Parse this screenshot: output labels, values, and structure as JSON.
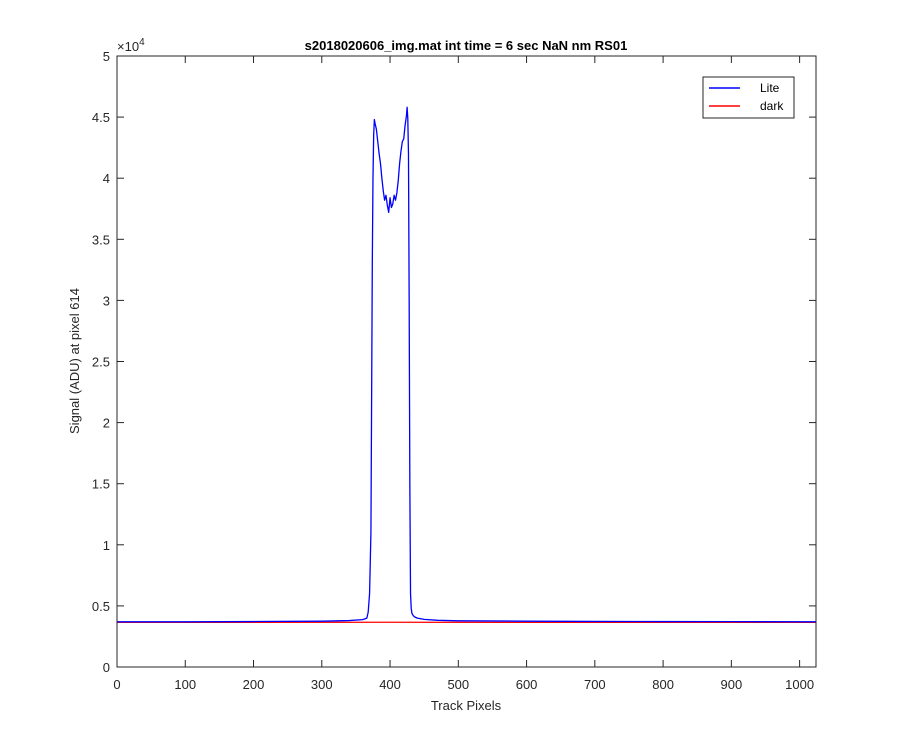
{
  "chart_data": {
    "type": "line",
    "title": "s2018020606_img.mat int time = 6 sec  NaN nm RS01",
    "xlabel": "Track Pixels",
    "ylabel": "Signal (ADU) at pixel 614",
    "xlim": [
      0,
      1024
    ],
    "ylim": [
      0,
      50000
    ],
    "x_ticks": [
      "0",
      "100",
      "200",
      "300",
      "400",
      "500",
      "600",
      "700",
      "800",
      "900",
      "1000"
    ],
    "y_ticks": [
      "0",
      "0.5",
      "1",
      "1.5",
      "2",
      "2.5",
      "3",
      "3.5",
      "4",
      "4.5",
      "5"
    ],
    "y_multiplier": "×10",
    "y_multiplier_exp": "4",
    "grid": false,
    "legend_position": "top-right",
    "series": [
      {
        "name": "Lite",
        "color": "#0000ff",
        "x": [
          0,
          100,
          200,
          300,
          340,
          360,
          366,
          368,
          370,
          372,
          373,
          374,
          375,
          376,
          377,
          378,
          380,
          382,
          384,
          386,
          388,
          390,
          392,
          394,
          396,
          398,
          400,
          402,
          404,
          406,
          408,
          410,
          412,
          414,
          416,
          418,
          420,
          422,
          424,
          425,
          426,
          427,
          428,
          429,
          430,
          431,
          432,
          434,
          436,
          440,
          450,
          470,
          500,
          600,
          700,
          800,
          900,
          1024
        ],
        "y": [
          3700,
          3700,
          3720,
          3750,
          3800,
          3880,
          4000,
          4500,
          6000,
          11000,
          22000,
          33000,
          40000,
          43500,
          44800,
          44500,
          44000,
          43000,
          42000,
          41200,
          40000,
          39000,
          38200,
          38600,
          37800,
          37200,
          38400,
          37600,
          37900,
          38600,
          38200,
          38800,
          39800,
          41200,
          42200,
          43000,
          43200,
          44300,
          45100,
          45800,
          44900,
          42000,
          30000,
          15000,
          6000,
          4800,
          4400,
          4200,
          4100,
          4000,
          3900,
          3820,
          3780,
          3750,
          3730,
          3720,
          3710,
          3700
        ]
      },
      {
        "name": "dark",
        "color": "#ff0000",
        "x": [
          0,
          200,
          400,
          600,
          800,
          1024
        ],
        "y": [
          3650,
          3650,
          3660,
          3650,
          3650,
          3650
        ]
      }
    ]
  }
}
